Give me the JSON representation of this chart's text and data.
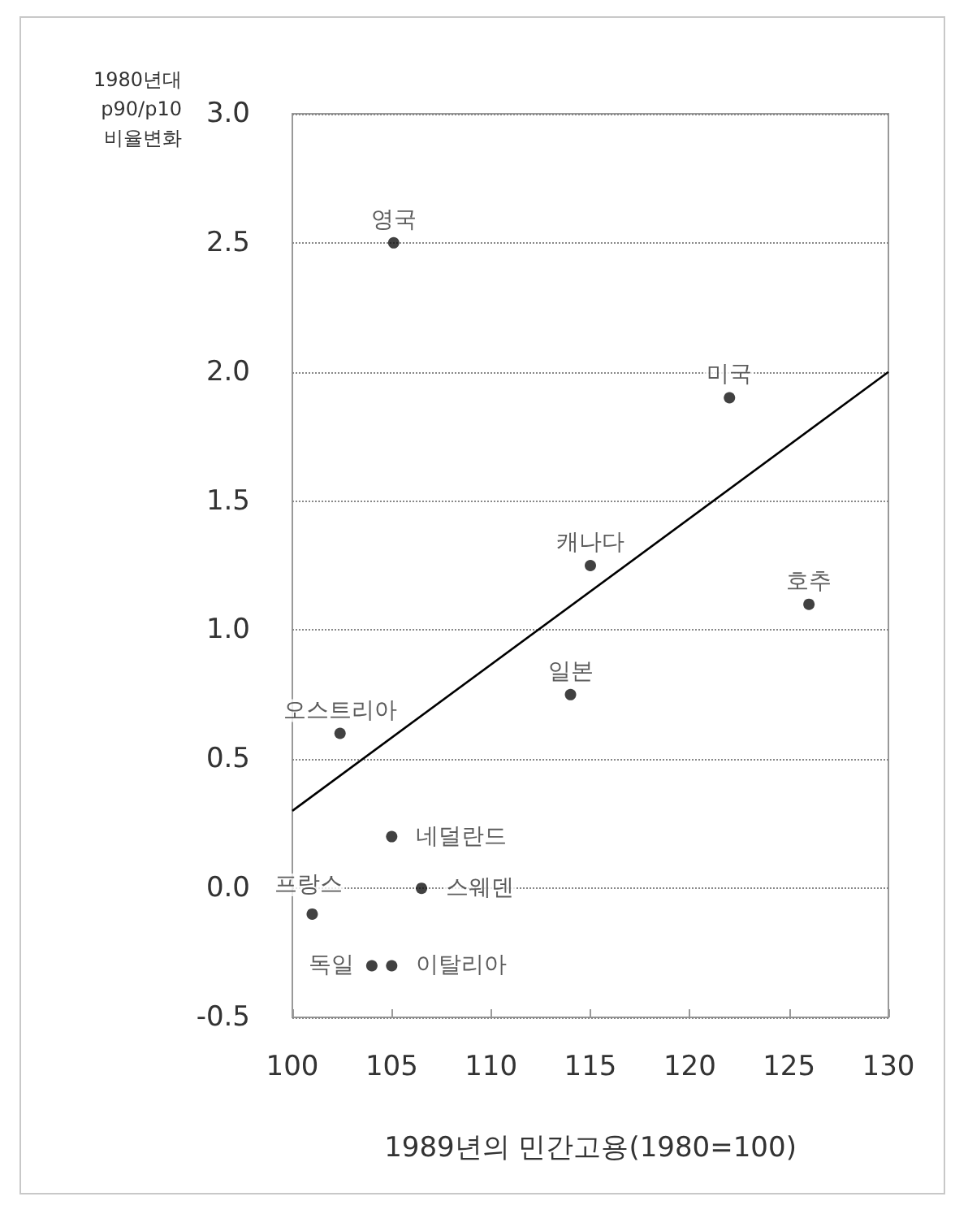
{
  "chart_data": {
    "type": "scatter",
    "xlabel": "1989년의 민간고용(1980=100)",
    "ylabel": "1980년대\np90/p10\n비율변화",
    "series": [
      {
        "color": "#111111",
        "x": [
          105.1,
          122,
          115,
          126,
          114,
          102.4,
          105,
          106.5,
          101,
          104,
          105
        ],
        "values": [
          2.5,
          1.9,
          1.25,
          1.1,
          0.75,
          0.6,
          0.2,
          0.0,
          -0.1,
          -0.3,
          -0.3
        ]
      },
      {
        "type": "line",
        "color": "#000000",
        "x": [
          100,
          130
        ],
        "values": [
          0.3,
          2.0
        ],
        "marker": "none"
      }
    ],
    "annotations": [
      {
        "text": "영국",
        "x": 105.1,
        "y": 2.5
      },
      {
        "text": "미국",
        "x": 122,
        "y": 1.9
      },
      {
        "text": "캐나다",
        "x": 115,
        "y": 1.25
      },
      {
        "text": "호추",
        "x": 126,
        "y": 1.1
      },
      {
        "text": "일본",
        "x": 114,
        "y": 0.75
      },
      {
        "text": "오스트리아",
        "x": 102.4,
        "y": 0.6
      },
      {
        "text": "네덜란드",
        "x": 105,
        "y": 0.2
      },
      {
        "text": "스웨덴",
        "x": 106.5,
        "y": 0.0
      },
      {
        "text": "프랑스",
        "x": 101,
        "y": -0.1
      },
      {
        "text": "독일",
        "x": 104,
        "y": -0.3
      },
      {
        "text": "이탈리아",
        "x": 105,
        "y": -0.3
      }
    ],
    "xlim": [
      100,
      130
    ],
    "xticks": [
      100,
      105,
      110,
      115,
      120,
      125,
      130
    ],
    "ylim": [
      -0.5,
      3.0
    ],
    "yticks": [
      {
        "value": -0.5,
        "label": "-0.5"
      },
      {
        "value": 0,
        "label": "0.0"
      },
      {
        "value": 0.5,
        "label": "0.5"
      },
      {
        "value": 1,
        "label": "1.0"
      },
      {
        "value": 1.5,
        "label": "1.5"
      },
      {
        "value": 2,
        "label": "2.0"
      },
      {
        "value": 2.5,
        "label": "2.5"
      },
      {
        "value": 3,
        "label": "3.0"
      }
    ],
    "grid": "y",
    "marker": "circle"
  }
}
